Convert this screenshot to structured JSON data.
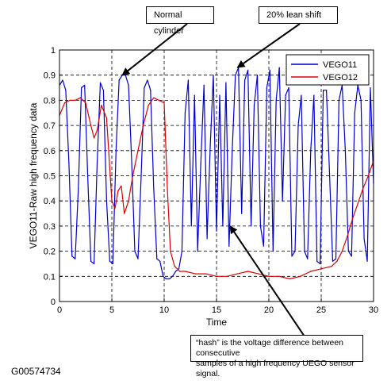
{
  "chart_data": {
    "type": "line",
    "xlabel": "Time",
    "ylabel": "VEGO11-Raw high frequency data",
    "xlim": [
      0,
      30
    ],
    "ylim": [
      0,
      1
    ],
    "xticks": [
      "0",
      "5",
      "10",
      "15",
      "20",
      "25",
      "30"
    ],
    "yticks": [
      "0",
      "0.1",
      "0.2",
      "0.3",
      "0.4",
      "0.5",
      "0.6",
      "0.7",
      "0.8",
      "0.9",
      "1"
    ],
    "grid": true,
    "legend_position": "top-right",
    "series": [
      {
        "name": "VEGO11",
        "color": "#0000cc",
        "x": [
          0,
          0.3,
          0.6,
          0.9,
          1.2,
          1.5,
          1.8,
          2.1,
          2.4,
          2.7,
          3.0,
          3.3,
          3.6,
          3.9,
          4.2,
          4.5,
          4.8,
          5.1,
          5.4,
          5.7,
          6.0,
          6.3,
          6.6,
          6.9,
          7.2,
          7.5,
          7.8,
          8.1,
          8.4,
          8.7,
          9.0,
          9.3,
          9.6,
          9.9,
          10.2,
          10.5,
          10.8,
          11.1,
          11.4,
          11.7,
          12.0,
          12.3,
          12.6,
          12.9,
          13.2,
          13.5,
          13.8,
          14.1,
          14.4,
          14.7,
          15.0,
          15.3,
          15.6,
          15.9,
          16.2,
          16.5,
          16.8,
          17.1,
          17.4,
          17.7,
          18.0,
          18.3,
          18.6,
          18.9,
          19.2,
          19.5,
          19.8,
          20.1,
          20.4,
          20.7,
          21.0,
          21.3,
          21.6,
          21.9,
          22.2,
          22.5,
          22.8,
          23.1,
          23.4,
          23.7,
          24.0,
          24.3,
          24.6,
          24.9,
          25.2,
          25.5,
          25.8,
          26.1,
          26.4,
          26.7,
          27.0,
          27.3,
          27.6,
          27.9,
          28.2,
          28.5,
          28.8,
          29.1,
          29.4,
          29.7,
          30.0
        ],
        "values": [
          0.86,
          0.88,
          0.84,
          0.55,
          0.18,
          0.17,
          0.45,
          0.85,
          0.86,
          0.5,
          0.16,
          0.15,
          0.55,
          0.87,
          0.84,
          0.4,
          0.16,
          0.15,
          0.6,
          0.88,
          0.9,
          0.9,
          0.86,
          0.55,
          0.2,
          0.17,
          0.5,
          0.85,
          0.88,
          0.84,
          0.45,
          0.17,
          0.16,
          0.1,
          0.09,
          0.09,
          0.1,
          0.12,
          0.13,
          0.2,
          0.75,
          0.88,
          0.3,
          0.82,
          0.2,
          0.55,
          0.86,
          0.25,
          0.62,
          0.9,
          0.28,
          0.82,
          0.3,
          0.87,
          0.22,
          0.6,
          0.9,
          0.93,
          0.35,
          0.88,
          0.92,
          0.3,
          0.78,
          0.9,
          0.3,
          0.22,
          0.85,
          0.92,
          0.2,
          0.8,
          0.93,
          0.4,
          0.82,
          0.85,
          0.18,
          0.2,
          0.7,
          0.82,
          0.2,
          0.17,
          0.6,
          0.82,
          0.16,
          0.15,
          0.84,
          0.84,
          0.5,
          0.16,
          0.17,
          0.8,
          0.86,
          0.6,
          0.2,
          0.18,
          0.75,
          0.86,
          0.8,
          0.25,
          0.16,
          0.85,
          0.47
        ]
      },
      {
        "name": "VEGO12",
        "color": "#dd0000",
        "x": [
          0,
          0.5,
          1.0,
          1.5,
          2.0,
          2.5,
          3.0,
          3.3,
          3.6,
          4.0,
          4.5,
          5.0,
          5.3,
          5.6,
          5.9,
          6.2,
          6.6,
          7.0,
          7.5,
          8.0,
          8.5,
          9.0,
          9.5,
          10.0,
          10.3,
          10.6,
          11.0,
          11.5,
          12.0,
          13.0,
          14.0,
          15.0,
          16.0,
          17.0,
          18.0,
          19.0,
          20.0,
          21.0,
          22.0,
          23.0,
          24.0,
          25.0,
          26.0,
          26.5,
          27.0,
          27.5,
          28.0,
          28.5,
          29.0,
          29.5,
          30.0
        ],
        "values": [
          0.74,
          0.79,
          0.8,
          0.8,
          0.81,
          0.79,
          0.7,
          0.65,
          0.68,
          0.78,
          0.73,
          0.4,
          0.37,
          0.44,
          0.46,
          0.35,
          0.4,
          0.5,
          0.6,
          0.7,
          0.78,
          0.81,
          0.8,
          0.79,
          0.45,
          0.2,
          0.14,
          0.12,
          0.12,
          0.11,
          0.11,
          0.1,
          0.1,
          0.11,
          0.12,
          0.11,
          0.1,
          0.1,
          0.09,
          0.1,
          0.12,
          0.13,
          0.14,
          0.16,
          0.2,
          0.26,
          0.33,
          0.39,
          0.45,
          0.5,
          0.56
        ]
      }
    ],
    "annotations": [
      {
        "text": "Normal cylinder",
        "x": 6,
        "y": 0.9
      },
      {
        "text": "20% lean shift",
        "x": 17,
        "y": 0.93
      },
      {
        "text": "“hash” is the voltage difference between consecutive samples of a high frequency UEGO sensor signal.",
        "x": 16.3,
        "y": 0.3
      }
    ]
  },
  "callouts": {
    "normal": "Normal cylinder",
    "lean": "20% lean shift",
    "hash_line1": "“hash” is the voltage difference between consecutive",
    "hash_line2": "samples of a high frequency UEGO sensor signal."
  },
  "figure_id": "G00574734"
}
